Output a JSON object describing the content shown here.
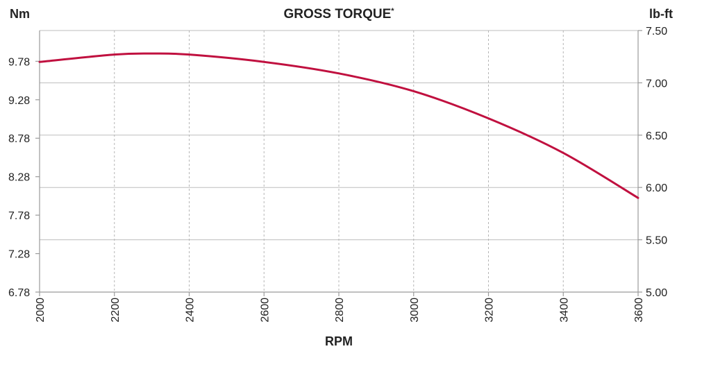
{
  "chart_data": {
    "type": "line",
    "title": "GROSS TORQUE",
    "title_mark": "*",
    "xlabel": "RPM",
    "ylabel_left": "Nm",
    "ylabel_right": "lb-ft",
    "xlim": [
      2000,
      3600
    ],
    "x_ticks": [
      "2000",
      "2200",
      "2400",
      "2600",
      "2800",
      "3000",
      "3200",
      "3400",
      "3600"
    ],
    "ylim_left": [
      6.78,
      10.18
    ],
    "y_ticks_left": [
      "6.78",
      "7.28",
      "7.78",
      "8.28",
      "8.78",
      "9.28",
      "9.78"
    ],
    "ylim_right": [
      5.0,
      7.5
    ],
    "y_ticks_right": [
      "5.00",
      "5.50",
      "6.00",
      "6.50",
      "7.00",
      "7.50"
    ],
    "grid": {
      "vertical": "dashed",
      "horizontal_right_axis": "solid"
    },
    "series": [
      {
        "color": "#c0103f",
        "axis": "right",
        "x": [
          2000,
          2200,
          2300,
          2400,
          2600,
          2800,
          3000,
          3200,
          3400,
          3600
        ],
        "y": [
          7.2,
          7.27,
          7.28,
          7.27,
          7.2,
          7.09,
          6.92,
          6.66,
          6.33,
          5.9
        ]
      }
    ]
  }
}
